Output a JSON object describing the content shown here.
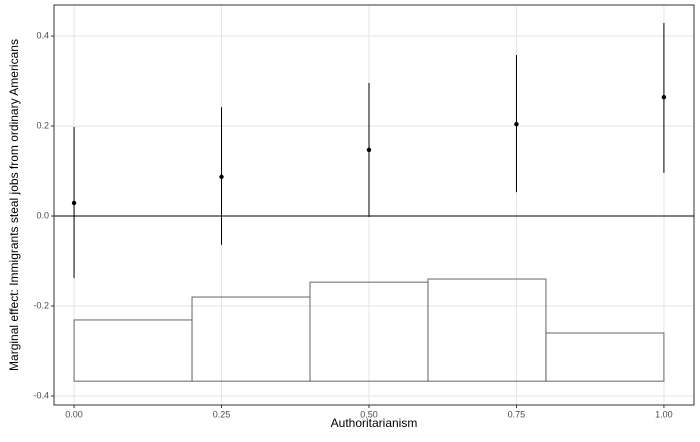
{
  "chart_data": {
    "type": "errorbar",
    "x_label": "Authoritarianism",
    "y_label": "Marginal effect: Immigrants steal jobs from ordinary Americans",
    "x": [
      0,
      0.25,
      0.5,
      0.75,
      1
    ],
    "values": [
      0.029,
      0.087,
      0.147,
      0.204,
      0.264
    ],
    "lower": [
      -0.138,
      -0.064,
      -0.002,
      0.053,
      0.096
    ],
    "upper": [
      0.198,
      0.242,
      0.296,
      0.358,
      0.429
    ],
    "hline": 0,
    "histogram": {
      "bins": [
        0,
        0.2,
        0.4,
        0.6,
        0.8,
        1
      ],
      "base": -0.367,
      "tops": [
        -0.231,
        -0.18,
        -0.147,
        -0.14,
        -0.26
      ]
    },
    "xlim": [
      -0.034,
      1.051
    ],
    "ylim": [
      -0.42,
      0.469
    ],
    "xticks": [
      {
        "value": 0,
        "label": "0.00"
      },
      0.25,
      {
        "value": 0.5,
        "label": "0.50"
      },
      0.75,
      {
        "value": 1,
        "label": "1.00"
      }
    ],
    "yticks": [
      {
        "value": -0.4,
        "label": "-0.4"
      },
      -0.2,
      {
        "value": 0,
        "label": "0.0"
      },
      0.2,
      0.4
    ],
    "grid": true,
    "color": "#000000"
  }
}
